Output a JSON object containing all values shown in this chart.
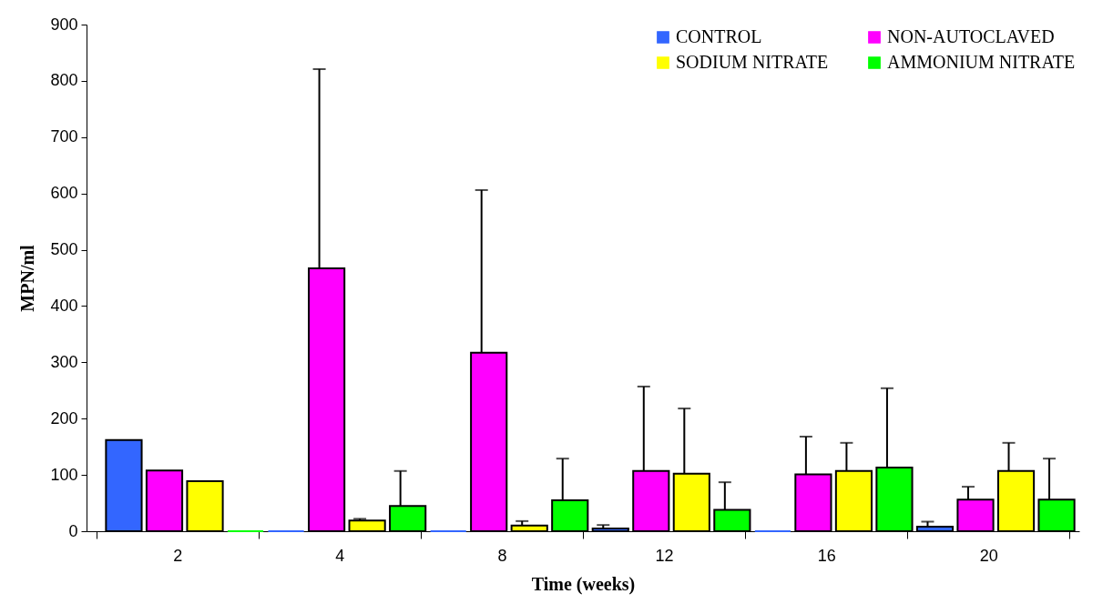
{
  "chart_data": {
    "type": "bar",
    "xlabel": "Time (weeks)",
    "ylabel": "MPN/ml",
    "categories": [
      "2",
      "4",
      "8",
      "12",
      "16",
      "20"
    ],
    "ylim": [
      0,
      900
    ],
    "yticks": [
      0,
      100,
      200,
      300,
      400,
      500,
      600,
      700,
      800,
      900
    ],
    "legend": "top right",
    "series": [
      {
        "name": "CONTROL",
        "color": "#3366ff",
        "values": [
          162,
          0,
          0,
          5,
          0,
          8
        ],
        "errors": [
          null,
          null,
          null,
          [
            5,
            11
          ],
          null,
          [
            8,
            17
          ]
        ]
      },
      {
        "name": "NON-AUTOCLAVED",
        "color": "#ff00ff",
        "values": [
          108,
          467,
          317,
          107,
          101,
          56
        ],
        "errors": [
          null,
          [
            467,
            821
          ],
          [
            317,
            606
          ],
          [
            107,
            257
          ],
          [
            101,
            168
          ],
          [
            56,
            79
          ]
        ]
      },
      {
        "name": "SODIUM NITRATE",
        "color": "#ffff00",
        "values": [
          89,
          19,
          10,
          102,
          107,
          107
        ],
        "errors": [
          null,
          [
            19,
            22
          ],
          [
            10,
            18
          ],
          [
            102,
            218
          ],
          [
            107,
            157
          ],
          [
            107,
            157
          ]
        ]
      },
      {
        "name": "AMMONIUM NITRATE",
        "color": "#00ff00",
        "values": [
          0,
          45,
          55,
          38,
          113,
          56
        ],
        "errors": [
          null,
          [
            45,
            107
          ],
          [
            55,
            129
          ],
          [
            38,
            87
          ],
          [
            113,
            254
          ],
          [
            56,
            129
          ]
        ]
      }
    ]
  }
}
